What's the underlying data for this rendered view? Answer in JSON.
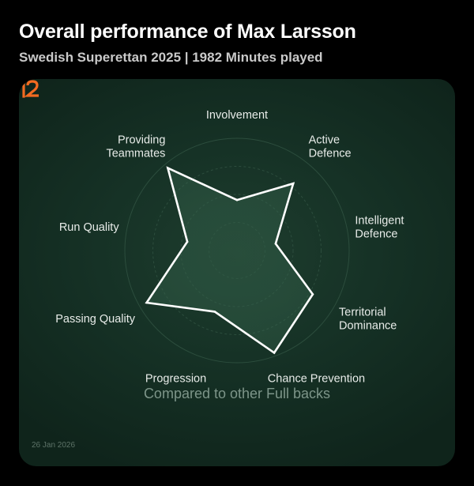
{
  "header": {
    "title": "Overall performance of Max Larsson",
    "subtitle": "Swedish Superettan 2025 | 1982 Minutes played"
  },
  "footer": {
    "compared": "Compared to other Full backs",
    "date": "26 Jan 2026"
  },
  "colors": {
    "background": "#000000",
    "card": "#163226",
    "accent_orange": "#f26a21",
    "line": "#ffffff"
  },
  "chart_data": {
    "type": "radar",
    "title": "Overall performance of Max Larsson",
    "categories": [
      "Involvement",
      "Active\nDefence",
      "Intelligent\nDefence",
      "Territorial\nDominance",
      "Chance Prevention",
      "Progression",
      "Passing Quality",
      "Run Quality",
      "Providing\nTeammates"
    ],
    "series": [
      {
        "values": [
          0.45,
          0.78,
          0.35,
          0.78,
          0.97,
          0.58,
          0.93,
          0.45,
          0.96
        ]
      }
    ],
    "rlim": [
      0,
      1
    ],
    "rings": 4,
    "grid": true,
    "legend": "none"
  }
}
